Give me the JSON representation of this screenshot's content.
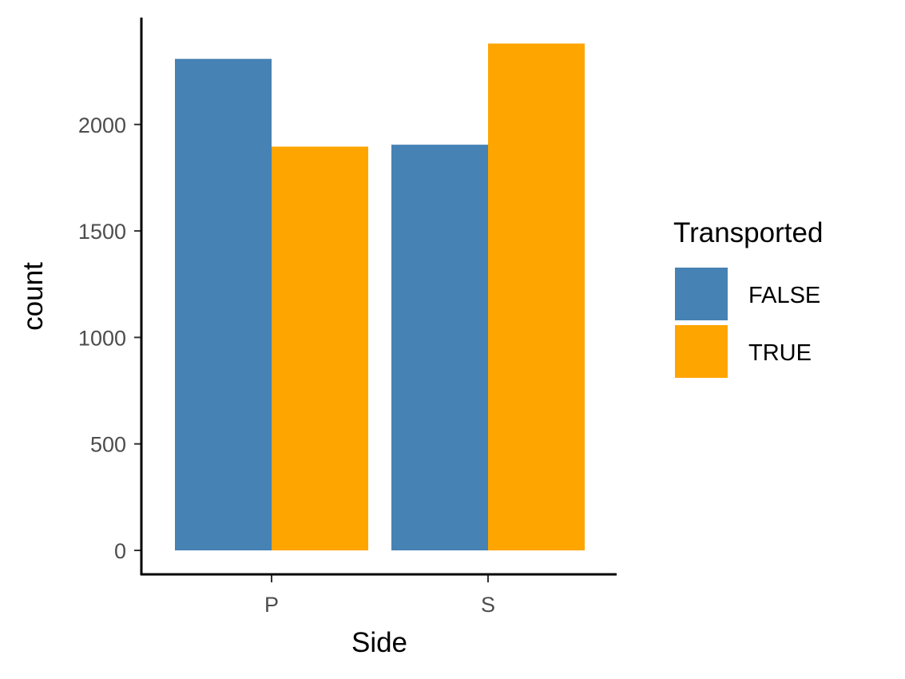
{
  "chart_data": {
    "type": "bar",
    "categories": [
      "P",
      "S"
    ],
    "series": [
      {
        "name": "FALSE",
        "values": [
          2308,
          1905
        ],
        "color": "#4682B4"
      },
      {
        "name": "TRUE",
        "values": [
          1896,
          2380
        ],
        "color": "#FFA500"
      }
    ],
    "xlabel": "Side",
    "ylabel": "count",
    "ylim": [
      0,
      2500
    ],
    "yticks": [
      0,
      500,
      1000,
      1500,
      2000
    ],
    "ytick_labels": [
      "0",
      "500",
      "1000",
      "1500",
      "2000"
    ],
    "legend": {
      "title": "Transported",
      "placement": "right"
    },
    "grid": false
  }
}
